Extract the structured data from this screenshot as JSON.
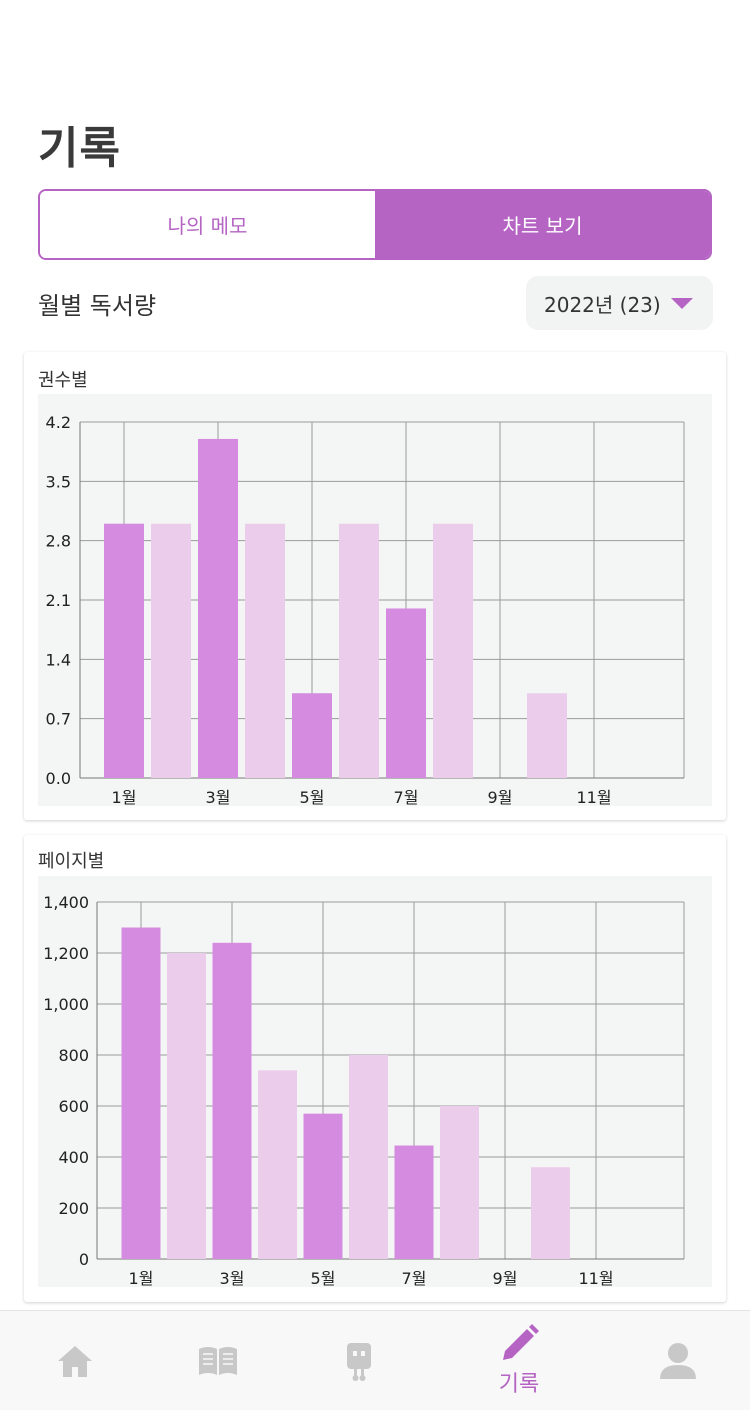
{
  "header": {
    "title": "기록"
  },
  "segmented": {
    "memo_label": "나의 메모",
    "chart_label": "차트 보기"
  },
  "section": {
    "title": "월별 독서량",
    "year_value": "2022년 (23)"
  },
  "colors": {
    "accent": "#b564c3",
    "bar_dark": "#d48be0",
    "bar_light": "#ebcdeb",
    "plot_bg": "#f4f6f5"
  },
  "tabbar": {
    "items": [
      {
        "icon": "home-icon",
        "label": ""
      },
      {
        "icon": "book-icon",
        "label": ""
      },
      {
        "icon": "robot-icon",
        "label": ""
      },
      {
        "icon": "pencil-icon",
        "label": "기록"
      },
      {
        "icon": "person-icon",
        "label": ""
      }
    ]
  },
  "chart_data": [
    {
      "type": "bar",
      "title": "권수별",
      "categories": [
        "1월",
        "2월",
        "3월",
        "4월",
        "5월",
        "6월",
        "7월",
        "8월",
        "9월",
        "10월",
        "11월",
        "12월"
      ],
      "tick_labels": [
        "1월",
        "3월",
        "5월",
        "7월",
        "9월",
        "11월"
      ],
      "values": [
        3,
        3,
        4,
        3,
        1,
        3,
        2,
        3,
        0,
        1,
        0,
        0
      ],
      "yticks": [
        "0.0",
        "0.7",
        "1.4",
        "2.1",
        "2.8",
        "3.5",
        "4.2"
      ],
      "ylim": [
        0,
        4.2
      ],
      "grid": true
    },
    {
      "type": "bar",
      "title": "페이지별",
      "categories": [
        "1월",
        "2월",
        "3월",
        "4월",
        "5월",
        "6월",
        "7월",
        "8월",
        "9월",
        "10월",
        "11월",
        "12월"
      ],
      "tick_labels": [
        "1월",
        "3월",
        "5월",
        "7월",
        "9월",
        "11월"
      ],
      "values": [
        1300,
        1200,
        1240,
        740,
        570,
        800,
        445,
        600,
        0,
        360,
        0,
        0
      ],
      "yticks": [
        "0",
        "200",
        "400",
        "600",
        "800",
        "1,000",
        "1,200",
        "1,400"
      ],
      "ylim": [
        0,
        1400
      ],
      "grid": true
    }
  ]
}
